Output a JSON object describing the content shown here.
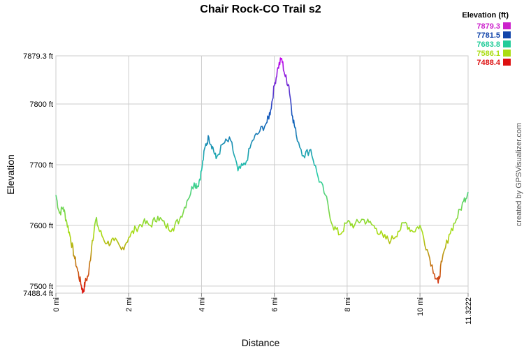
{
  "chart_data": {
    "type": "line",
    "title": "Chair Rock-CO Trail s2",
    "xlabel": "Distance",
    "ylabel": "Elevation",
    "x_unit": "mi",
    "y_unit": "ft",
    "xlim": [
      0,
      11.3222
    ],
    "ylim": [
      7488.4,
      7879.3
    ],
    "x_ticks": [
      0,
      2,
      4,
      6,
      8,
      10,
      11.3222
    ],
    "x_tick_labels": [
      "0 mi",
      "2 mi",
      "4 mi",
      "6 mi",
      "8 mi",
      "10 mi",
      "11.3222"
    ],
    "y_ticks": [
      7488.4,
      7500,
      7600,
      7700,
      7800,
      7879.3
    ],
    "y_tick_labels": [
      "7488.4 ft",
      "7500 ft",
      "7600 ft",
      "7700 ft",
      "7800 ft",
      "7879.3 ft"
    ],
    "grid": true,
    "legend": {
      "title": "Elevation (ft)",
      "placement": "top-right",
      "entries": [
        {
          "label": "7879.3",
          "color": "#cc22cc"
        },
        {
          "label": "7781.5",
          "color": "#1144aa"
        },
        {
          "label": "7683.8",
          "color": "#22cc99"
        },
        {
          "label": "7586.1",
          "color": "#aadd11"
        },
        {
          "label": "7488.4",
          "color": "#dd1111"
        }
      ]
    },
    "series": [
      {
        "x": [
          0,
          0.1,
          0.2,
          0.3,
          0.4,
          0.5,
          0.6,
          0.7,
          0.75,
          0.8,
          0.9,
          1.0,
          1.1,
          1.2,
          1.4,
          1.6,
          1.8,
          2.0,
          2.2,
          2.4,
          2.6,
          2.8,
          3.0,
          3.2,
          3.4,
          3.6,
          3.8,
          3.9,
          4.0,
          4.1,
          4.2,
          4.3,
          4.4,
          4.6,
          4.8,
          5.0,
          5.2,
          5.4,
          5.6,
          5.8,
          5.9,
          6.0,
          6.1,
          6.2,
          6.3,
          6.4,
          6.5,
          6.6,
          6.8,
          7.0,
          7.2,
          7.4,
          7.6,
          7.8,
          8.0,
          8.2,
          8.4,
          8.6,
          8.8,
          9.0,
          9.2,
          9.4,
          9.6,
          9.8,
          10.0,
          10.2,
          10.4,
          10.5,
          10.6,
          10.8,
          11.0,
          11.2,
          11.3222
        ],
        "y": [
          7650,
          7620,
          7630,
          7605,
          7580,
          7550,
          7525,
          7500,
          7490,
          7505,
          7520,
          7575,
          7610,
          7590,
          7570,
          7575,
          7560,
          7580,
          7595,
          7605,
          7600,
          7615,
          7600,
          7595,
          7610,
          7640,
          7670,
          7665,
          7690,
          7730,
          7745,
          7730,
          7710,
          7735,
          7740,
          7690,
          7700,
          7740,
          7755,
          7770,
          7790,
          7830,
          7860,
          7875,
          7845,
          7830,
          7780,
          7750,
          7715,
          7725,
          7680,
          7650,
          7600,
          7585,
          7605,
          7600,
          7610,
          7605,
          7595,
          7580,
          7575,
          7590,
          7605,
          7590,
          7600,
          7560,
          7520,
          7505,
          7540,
          7585,
          7610,
          7640,
          7655
        ]
      }
    ]
  },
  "credit": "created by GPSVisualizer.com"
}
